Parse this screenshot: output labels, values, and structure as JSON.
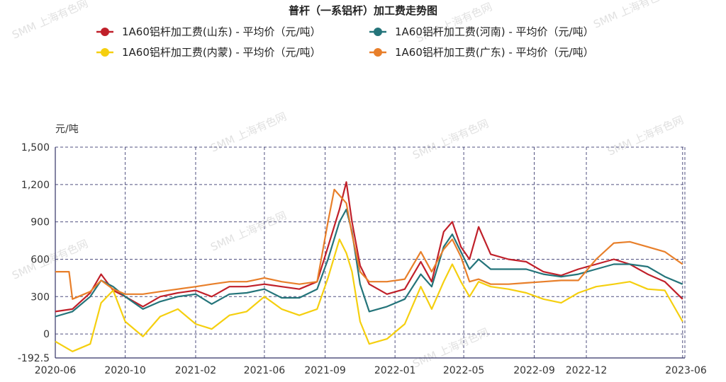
{
  "chart_data": {
    "type": "line",
    "title": "普杆（一系铝杆）加工费走势图",
    "ylabel": "元/吨",
    "ylim": [
      -192.5,
      1500
    ],
    "y_ticks": [
      {
        "value": 1500,
        "label": "1,500"
      },
      {
        "value": 1200,
        "label": "1,200"
      },
      {
        "value": 900,
        "label": "900"
      },
      {
        "value": 600,
        "label": "600"
      },
      {
        "value": 300,
        "label": "300"
      },
      {
        "value": 0,
        "label": "0"
      },
      {
        "value": -192.5,
        "label": "-192.5"
      }
    ],
    "x_range": [
      "2020-06-01",
      "2023-06-05"
    ],
    "x_ticks": [
      "2020-06",
      "2020-10",
      "2021-02",
      "2021-06",
      "2021-09",
      "2022-01",
      "2022-05",
      "2022-09",
      "2022-12",
      "2023-06"
    ],
    "x_tick_dates": [
      "2020-06-01",
      "2020-10-01",
      "2021-02-01",
      "2021-06-01",
      "2021-09-15",
      "2022-01-15",
      "2022-05-15",
      "2022-09-15",
      "2022-12-15",
      "2023-06-01"
    ],
    "grid": true,
    "legend_position": "top",
    "watermark": "SMM 上海有色网",
    "series": [
      {
        "name": "1A60铝杆加工费(山东) - 平均价（元/吨）",
        "color": "#c0202a",
        "points": [
          [
            "2020-06-01",
            180
          ],
          [
            "2020-07-01",
            200
          ],
          [
            "2020-08-01",
            330
          ],
          [
            "2020-08-20",
            480
          ],
          [
            "2020-09-10",
            350
          ],
          [
            "2020-10-01",
            300
          ],
          [
            "2020-11-01",
            220
          ],
          [
            "2020-12-01",
            300
          ],
          [
            "2021-01-01",
            330
          ],
          [
            "2021-02-01",
            350
          ],
          [
            "2021-03-01",
            300
          ],
          [
            "2021-04-01",
            380
          ],
          [
            "2021-05-01",
            380
          ],
          [
            "2021-06-01",
            400
          ],
          [
            "2021-07-01",
            380
          ],
          [
            "2021-08-01",
            360
          ],
          [
            "2021-09-01",
            420
          ],
          [
            "2021-09-20",
            700
          ],
          [
            "2021-10-10",
            1000
          ],
          [
            "2021-10-22",
            1220
          ],
          [
            "2021-11-01",
            900
          ],
          [
            "2021-11-15",
            550
          ],
          [
            "2021-12-01",
            400
          ],
          [
            "2022-01-01",
            320
          ],
          [
            "2022-02-01",
            360
          ],
          [
            "2022-03-01",
            580
          ],
          [
            "2022-03-20",
            420
          ],
          [
            "2022-04-10",
            820
          ],
          [
            "2022-04-25",
            900
          ],
          [
            "2022-05-10",
            700
          ],
          [
            "2022-05-25",
            600
          ],
          [
            "2022-06-10",
            860
          ],
          [
            "2022-07-01",
            640
          ],
          [
            "2022-08-01",
            600
          ],
          [
            "2022-09-01",
            580
          ],
          [
            "2022-10-01",
            500
          ],
          [
            "2022-11-01",
            470
          ],
          [
            "2022-12-01",
            520
          ],
          [
            "2023-01-01",
            560
          ],
          [
            "2023-02-01",
            600
          ],
          [
            "2023-03-01",
            560
          ],
          [
            "2023-04-01",
            480
          ],
          [
            "2023-05-01",
            420
          ],
          [
            "2023-06-01",
            280
          ]
        ]
      },
      {
        "name": "1A60铝杆加工费(河南) - 平均价（元/吨）",
        "color": "#24747a",
        "points": [
          [
            "2020-06-01",
            140
          ],
          [
            "2020-07-01",
            180
          ],
          [
            "2020-08-01",
            300
          ],
          [
            "2020-08-20",
            430
          ],
          [
            "2020-09-10",
            380
          ],
          [
            "2020-10-01",
            300
          ],
          [
            "2020-11-01",
            200
          ],
          [
            "2020-12-01",
            260
          ],
          [
            "2021-01-01",
            300
          ],
          [
            "2021-02-01",
            320
          ],
          [
            "2021-03-01",
            240
          ],
          [
            "2021-04-01",
            320
          ],
          [
            "2021-05-01",
            330
          ],
          [
            "2021-06-01",
            360
          ],
          [
            "2021-07-01",
            290
          ],
          [
            "2021-08-01",
            290
          ],
          [
            "2021-09-01",
            360
          ],
          [
            "2021-09-20",
            600
          ],
          [
            "2021-10-10",
            900
          ],
          [
            "2021-10-22",
            1000
          ],
          [
            "2021-11-01",
            820
          ],
          [
            "2021-11-15",
            400
          ],
          [
            "2021-12-01",
            180
          ],
          [
            "2022-01-01",
            220
          ],
          [
            "2022-02-01",
            280
          ],
          [
            "2022-03-01",
            480
          ],
          [
            "2022-03-20",
            380
          ],
          [
            "2022-04-10",
            700
          ],
          [
            "2022-04-25",
            800
          ],
          [
            "2022-05-10",
            660
          ],
          [
            "2022-05-25",
            520
          ],
          [
            "2022-06-10",
            600
          ],
          [
            "2022-07-01",
            520
          ],
          [
            "2022-08-01",
            520
          ],
          [
            "2022-09-01",
            520
          ],
          [
            "2022-10-01",
            480
          ],
          [
            "2022-11-01",
            460
          ],
          [
            "2022-12-01",
            480
          ],
          [
            "2023-01-01",
            520
          ],
          [
            "2023-02-01",
            560
          ],
          [
            "2023-03-01",
            560
          ],
          [
            "2023-04-01",
            540
          ],
          [
            "2023-05-01",
            460
          ],
          [
            "2023-06-01",
            400
          ]
        ]
      },
      {
        "name": "1A60铝杆加工费(内蒙) - 平均价（元/吨）",
        "color": "#f5cf0f",
        "points": [
          [
            "2020-06-01",
            -60
          ],
          [
            "2020-07-01",
            -140
          ],
          [
            "2020-08-01",
            -80
          ],
          [
            "2020-08-20",
            250
          ],
          [
            "2020-09-10",
            350
          ],
          [
            "2020-10-01",
            100
          ],
          [
            "2020-11-01",
            -20
          ],
          [
            "2020-12-01",
            140
          ],
          [
            "2021-01-01",
            200
          ],
          [
            "2021-02-01",
            80
          ],
          [
            "2021-03-01",
            40
          ],
          [
            "2021-04-01",
            150
          ],
          [
            "2021-05-01",
            180
          ],
          [
            "2021-06-01",
            300
          ],
          [
            "2021-07-01",
            200
          ],
          [
            "2021-08-01",
            150
          ],
          [
            "2021-09-01",
            200
          ],
          [
            "2021-09-20",
            450
          ],
          [
            "2021-10-10",
            760
          ],
          [
            "2021-10-22",
            650
          ],
          [
            "2021-11-01",
            500
          ],
          [
            "2021-11-15",
            100
          ],
          [
            "2021-12-01",
            -80
          ],
          [
            "2022-01-01",
            -40
          ],
          [
            "2022-02-01",
            80
          ],
          [
            "2022-03-01",
            380
          ],
          [
            "2022-03-20",
            200
          ],
          [
            "2022-04-10",
            420
          ],
          [
            "2022-04-25",
            560
          ],
          [
            "2022-05-10",
            420
          ],
          [
            "2022-05-25",
            300
          ],
          [
            "2022-06-10",
            420
          ],
          [
            "2022-07-01",
            380
          ],
          [
            "2022-08-01",
            360
          ],
          [
            "2022-09-01",
            330
          ],
          [
            "2022-10-01",
            280
          ],
          [
            "2022-11-01",
            250
          ],
          [
            "2022-12-01",
            330
          ],
          [
            "2023-01-01",
            380
          ],
          [
            "2023-02-01",
            400
          ],
          [
            "2023-03-01",
            420
          ],
          [
            "2023-04-01",
            360
          ],
          [
            "2023-05-01",
            350
          ],
          [
            "2023-06-01",
            100
          ]
        ]
      },
      {
        "name": "1A60铝杆加工费(广东) - 平均价（元/吨）",
        "color": "#e87f2a",
        "points": [
          [
            "2020-06-01",
            500
          ],
          [
            "2020-06-25",
            500
          ],
          [
            "2020-07-01",
            280
          ],
          [
            "2020-08-01",
            340
          ],
          [
            "2020-08-20",
            430
          ],
          [
            "2020-09-10",
            360
          ],
          [
            "2020-10-01",
            320
          ],
          [
            "2020-11-01",
            320
          ],
          [
            "2020-12-01",
            340
          ],
          [
            "2021-01-01",
            360
          ],
          [
            "2021-02-01",
            380
          ],
          [
            "2021-03-01",
            400
          ],
          [
            "2021-04-01",
            420
          ],
          [
            "2021-05-01",
            420
          ],
          [
            "2021-06-01",
            450
          ],
          [
            "2021-07-01",
            420
          ],
          [
            "2021-08-01",
            400
          ],
          [
            "2021-09-01",
            420
          ],
          [
            "2021-09-20",
            900
          ],
          [
            "2021-10-01",
            1160
          ],
          [
            "2021-10-22",
            1050
          ],
          [
            "2021-11-01",
            800
          ],
          [
            "2021-11-15",
            500
          ],
          [
            "2021-12-01",
            420
          ],
          [
            "2022-01-01",
            420
          ],
          [
            "2022-02-01",
            440
          ],
          [
            "2022-03-01",
            660
          ],
          [
            "2022-03-20",
            500
          ],
          [
            "2022-04-10",
            680
          ],
          [
            "2022-04-25",
            760
          ],
          [
            "2022-05-10",
            620
          ],
          [
            "2022-05-25",
            420
          ],
          [
            "2022-06-10",
            440
          ],
          [
            "2022-07-01",
            400
          ],
          [
            "2022-08-01",
            400
          ],
          [
            "2022-09-01",
            410
          ],
          [
            "2022-10-01",
            420
          ],
          [
            "2022-11-01",
            430
          ],
          [
            "2022-12-01",
            430
          ],
          [
            "2023-01-01",
            600
          ],
          [
            "2023-02-01",
            730
          ],
          [
            "2023-03-01",
            740
          ],
          [
            "2023-04-01",
            700
          ],
          [
            "2023-05-01",
            660
          ],
          [
            "2023-06-01",
            560
          ]
        ]
      }
    ]
  }
}
